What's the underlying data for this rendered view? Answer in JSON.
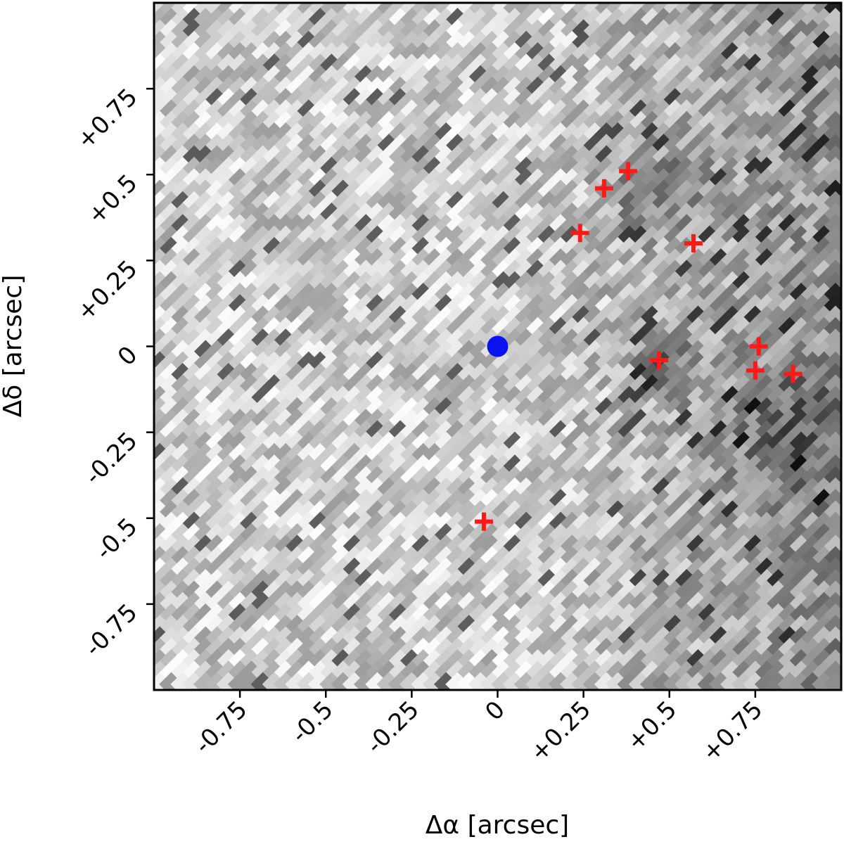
{
  "chart_data": {
    "type": "scatter",
    "title": "",
    "xlabel": "Δα [arcsec]",
    "ylabel": "Δδ [arcsec]",
    "xlim": [
      -1.0,
      1.0
    ],
    "ylim": [
      -1.0,
      1.0
    ],
    "x_ticks": [
      -0.75,
      -0.5,
      -0.25,
      0,
      0.25,
      0.5,
      0.75
    ],
    "x_tick_labels": [
      "-0.75",
      "-0.5",
      "-0.25",
      "0",
      "+0.25",
      "+0.5",
      "+0.75"
    ],
    "y_ticks": [
      -0.75,
      -0.5,
      -0.25,
      0,
      0.25,
      0.5,
      0.75
    ],
    "y_tick_labels": [
      "-0.75",
      "-0.5",
      "-0.25",
      "0",
      "+0.25",
      "+0.5",
      "+0.75"
    ],
    "background": "grayscale noise image",
    "series": [
      {
        "marker": "circle",
        "color": "#0a14f0",
        "points": [
          [
            0.0,
            0.0
          ]
        ]
      },
      {
        "marker": "plus",
        "color": "#ff1a1a",
        "points": [
          [
            0.38,
            0.51
          ],
          [
            0.31,
            0.46
          ],
          [
            0.24,
            0.33
          ],
          [
            0.57,
            0.3
          ],
          [
            0.47,
            -0.04
          ],
          [
            0.76,
            0.0
          ],
          [
            0.75,
            -0.07
          ],
          [
            0.86,
            -0.08
          ],
          [
            -0.04,
            -0.51
          ]
        ]
      }
    ]
  }
}
